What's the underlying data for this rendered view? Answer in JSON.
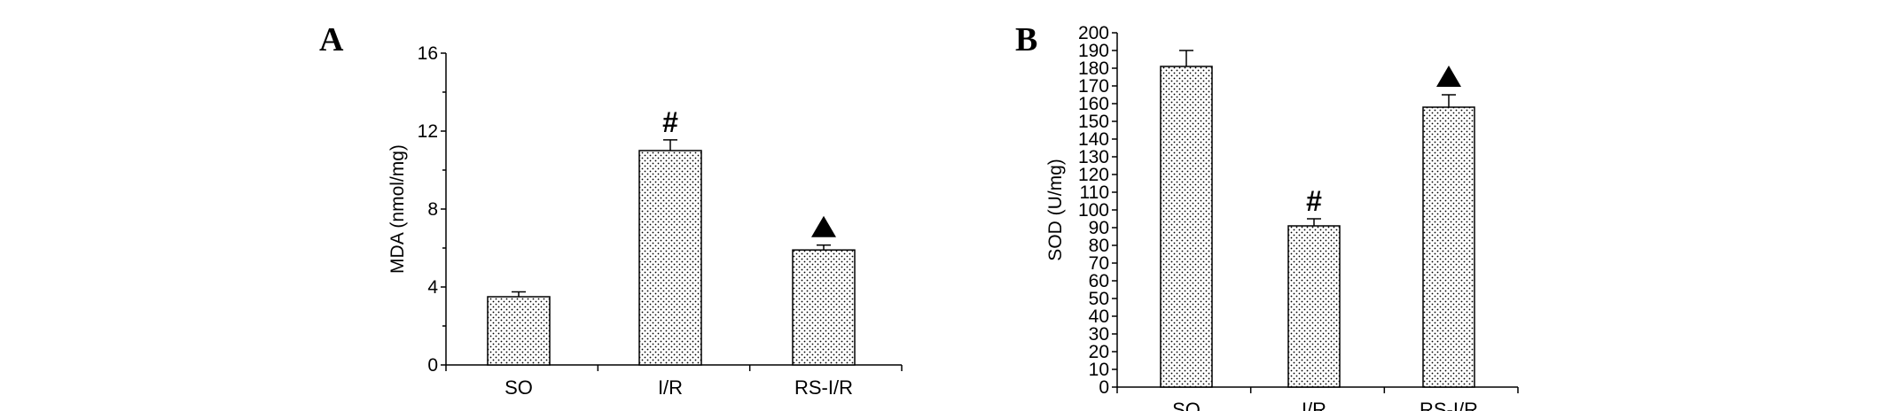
{
  "chart_data": [
    {
      "panel": "A",
      "type": "bar",
      "categories": [
        "SO",
        "I/R",
        "RS-I/R"
      ],
      "values": [
        3.5,
        11.0,
        5.9
      ],
      "errors": [
        0.25,
        0.55,
        0.25
      ],
      "annotations": [
        "",
        "#",
        "▲"
      ],
      "ylabel": "MDA (nmol/mg)",
      "ylim": [
        0,
        16
      ],
      "yticks": [
        0,
        4,
        8,
        12,
        16
      ]
    },
    {
      "panel": "B",
      "type": "bar",
      "categories": [
        "SO",
        "I/R",
        "RS-I/R"
      ],
      "values": [
        181,
        91,
        158
      ],
      "errors": [
        9,
        4,
        7
      ],
      "annotations": [
        "",
        "#",
        "▲"
      ],
      "ylabel": "SOD (U/mg)",
      "ylim": [
        0,
        200
      ],
      "yticks": [
        0,
        10,
        20,
        30,
        40,
        50,
        60,
        70,
        80,
        90,
        100,
        110,
        120,
        130,
        140,
        150,
        160,
        170,
        180,
        190,
        200
      ]
    }
  ]
}
